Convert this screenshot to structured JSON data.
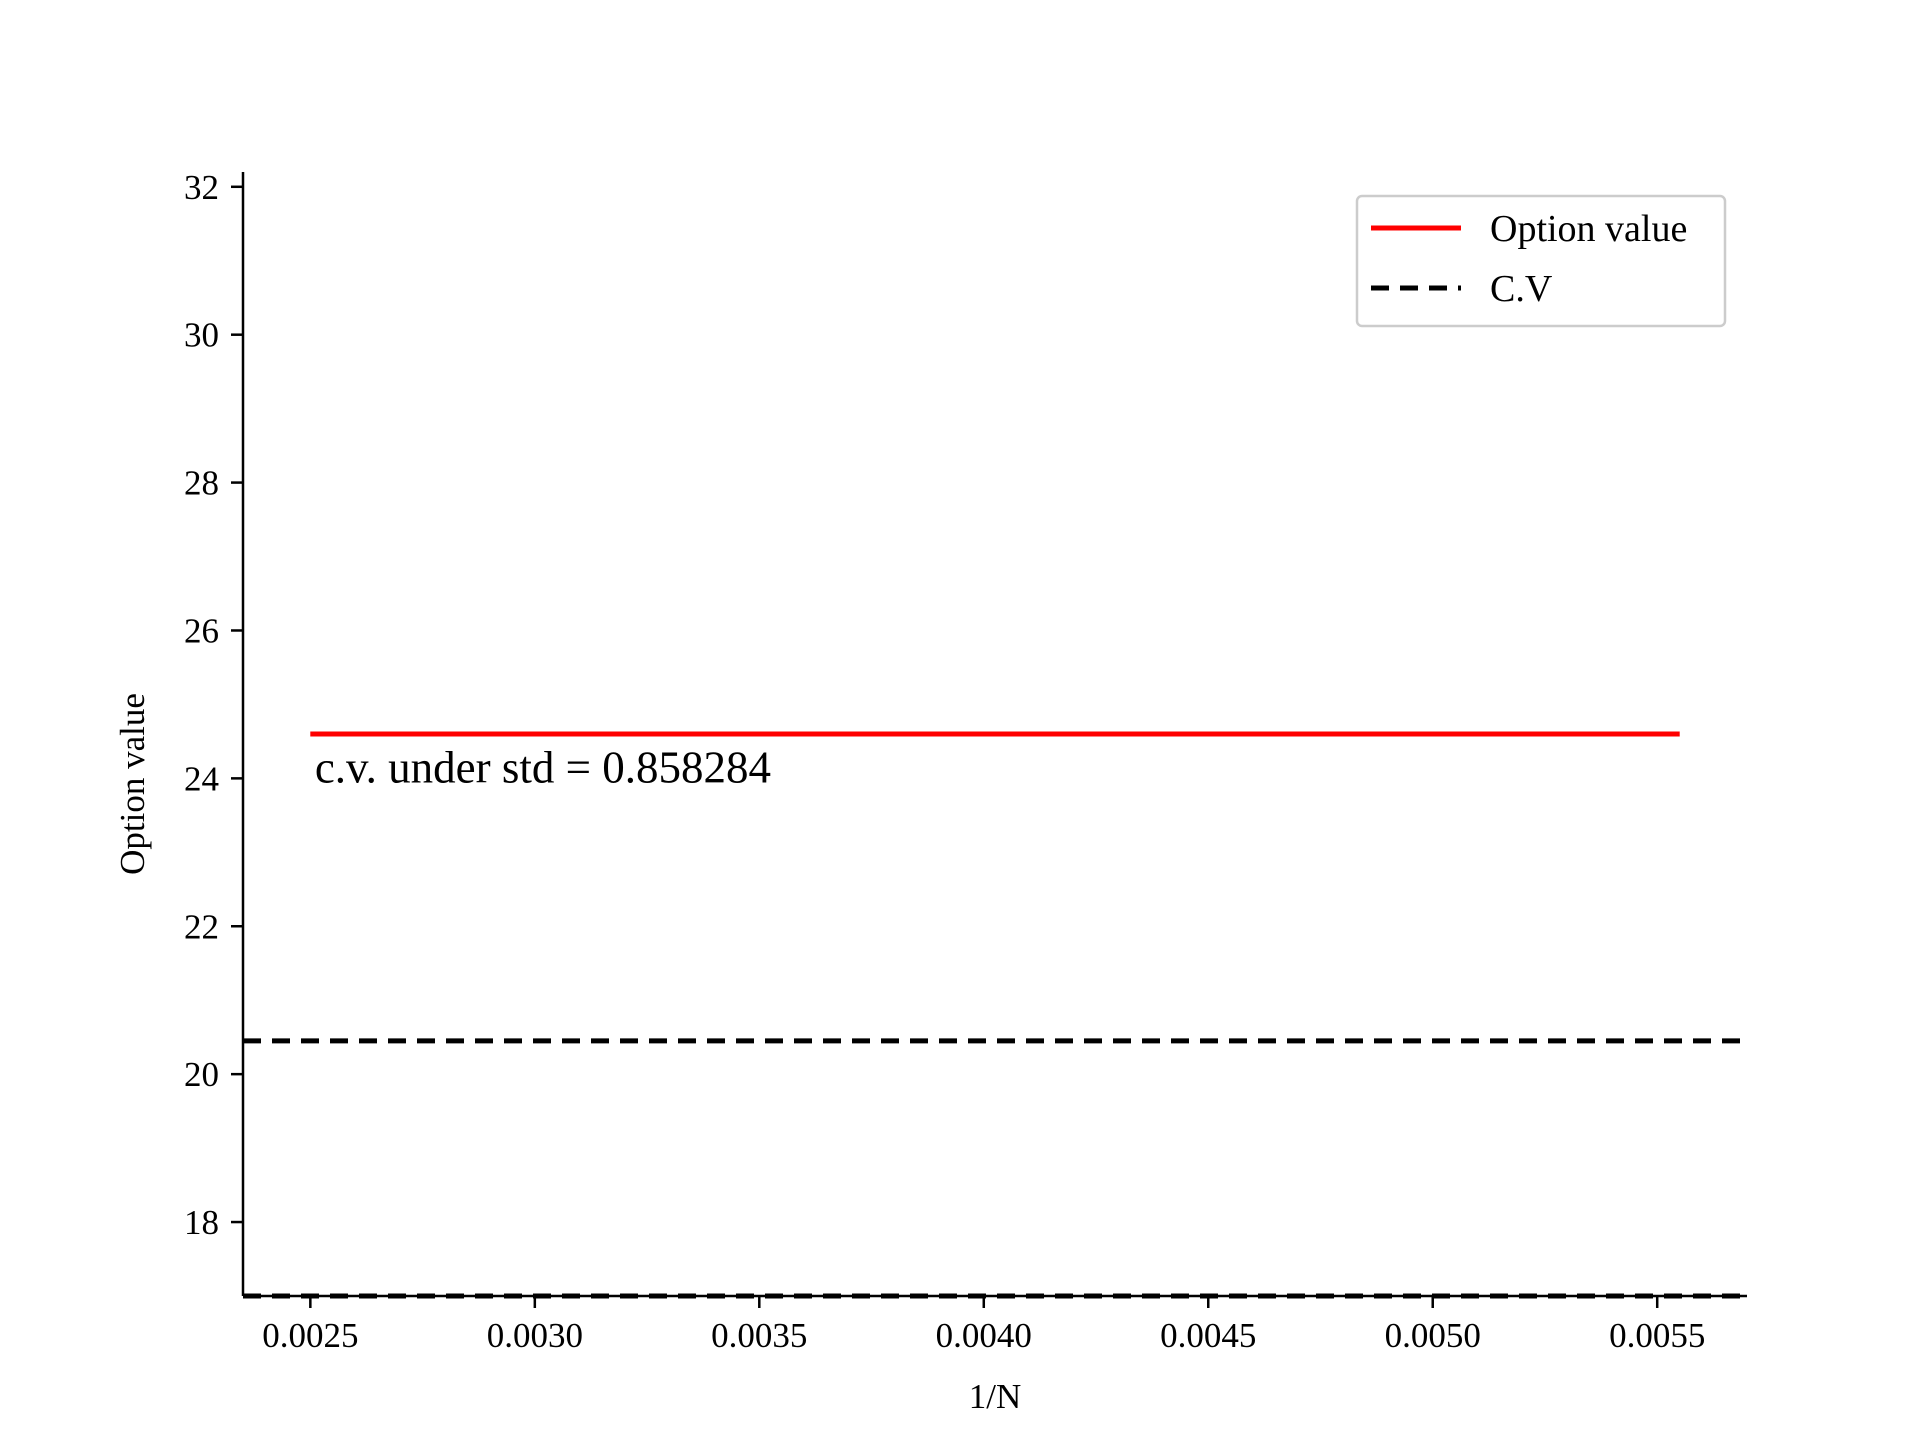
{
  "chart_data": {
    "type": "line",
    "title": "",
    "xlabel": "1/N",
    "ylabel": "Option value",
    "xlim": [
      0.00235,
      0.0057
    ],
    "ylim": [
      17,
      32.2
    ],
    "x_ticks": [
      0.0025,
      0.003,
      0.0035,
      0.004,
      0.0045,
      0.005,
      0.0055
    ],
    "x_tick_labels": [
      "0.0025",
      "0.0030",
      "0.0035",
      "0.0040",
      "0.0045",
      "0.0050",
      "0.0055"
    ],
    "y_ticks": [
      18,
      20,
      22,
      24,
      26,
      28,
      30,
      32
    ],
    "y_tick_labels": [
      "18",
      "20",
      "22",
      "24",
      "26",
      "28",
      "30",
      "32"
    ],
    "grid": false,
    "legend_position": "top-right",
    "series": [
      {
        "name": "Option value",
        "style": "solid",
        "color": "#ff0000",
        "x": [
          0.0025,
          0.00555
        ],
        "y": [
          24.6,
          24.6
        ]
      },
      {
        "name": "C.V",
        "style": "dashed",
        "color": "#000000",
        "x": [
          0.00235,
          0.0057
        ],
        "y": [
          20.45,
          20.45
        ]
      },
      {
        "name": "C.V",
        "style": "dashed",
        "color": "#000000",
        "x": [
          0.00235,
          0.0057
        ],
        "y": [
          17.0,
          17.0
        ]
      }
    ],
    "annotations": [
      {
        "text": "c.v. under std = 0.858284",
        "x": 0.00251,
        "y": 24.0
      }
    ],
    "legend": [
      {
        "label": "Option value",
        "style": "solid",
        "color": "#ff0000"
      },
      {
        "label": "C.V",
        "style": "dashed",
        "color": "#000000"
      }
    ]
  }
}
